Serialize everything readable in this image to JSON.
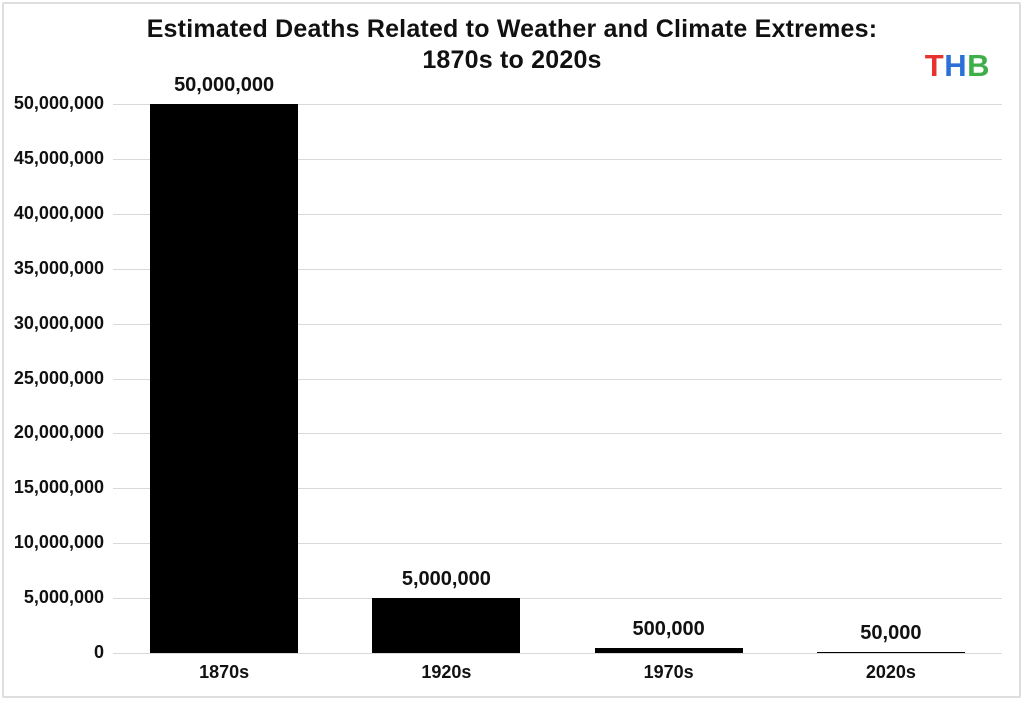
{
  "title": {
    "line1": "Estimated Deaths Related to Weather and Climate Extremes:",
    "line2": "1870s to 2020s"
  },
  "logo": {
    "name": "THB",
    "letters": [
      {
        "char": "T",
        "color": "#e8322d"
      },
      {
        "char": "H",
        "color": "#2b70d9"
      },
      {
        "char": "B",
        "color": "#3fae49"
      }
    ]
  },
  "chart_data": {
    "type": "bar",
    "title": "Estimated Deaths Related to Weather and Climate Extremes: 1870s to 2020s",
    "categories": [
      "1870s",
      "1920s",
      "1970s",
      "2020s"
    ],
    "values": [
      50000000,
      5000000,
      500000,
      50000
    ],
    "data_labels": [
      "50,000,000",
      "5,000,000",
      "500,000",
      "50,000"
    ],
    "xlabel": "",
    "ylabel": "",
    "ylim": [
      0,
      50000000
    ],
    "ytick_interval": 5000000,
    "yticks_top_to_bottom": [
      "50,000,000",
      "45,000,000",
      "40,000,000",
      "35,000,000",
      "30,000,000",
      "25,000,000",
      "20,000,000",
      "15,000,000",
      "10,000,000",
      "5,000,000",
      "0"
    ],
    "grid": true,
    "legend_position": "none",
    "bar_color": "#000000",
    "gridline_color": "#d9d9d9",
    "text_color": "#111111",
    "background_color": "#ffffff"
  }
}
